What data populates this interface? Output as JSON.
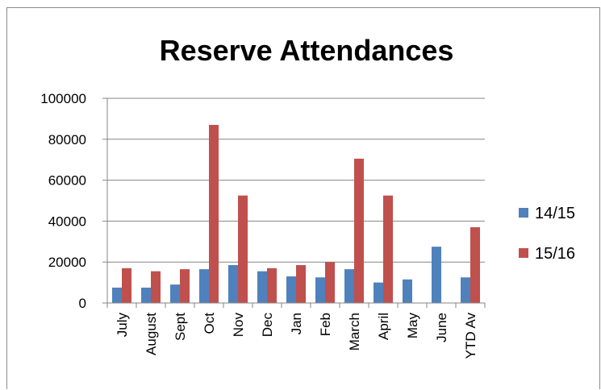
{
  "chart_data": {
    "type": "bar",
    "title": "Reserve Attendances",
    "xlabel": "",
    "ylabel": "",
    "ylim": [
      0,
      100000
    ],
    "yticks": [
      0,
      20000,
      40000,
      60000,
      80000,
      100000
    ],
    "categories": [
      "July",
      "August",
      "Sept",
      "Oct",
      "Nov",
      "Dec",
      "Jan",
      "Feb",
      "March",
      "April",
      "May",
      "June",
      "YTD Av"
    ],
    "series": [
      {
        "name": "14/15",
        "color": "#4f81bd",
        "values": [
          7500,
          7500,
          9000,
          16500,
          18500,
          15500,
          13000,
          12500,
          16500,
          10000,
          11500,
          27500,
          12500
        ]
      },
      {
        "name": "15/16",
        "color": "#c0504d",
        "values": [
          17000,
          15500,
          16500,
          87000,
          52500,
          17000,
          18500,
          20000,
          70500,
          52500,
          0,
          0,
          37000
        ]
      }
    ],
    "grid": true,
    "legend_position": "right"
  }
}
